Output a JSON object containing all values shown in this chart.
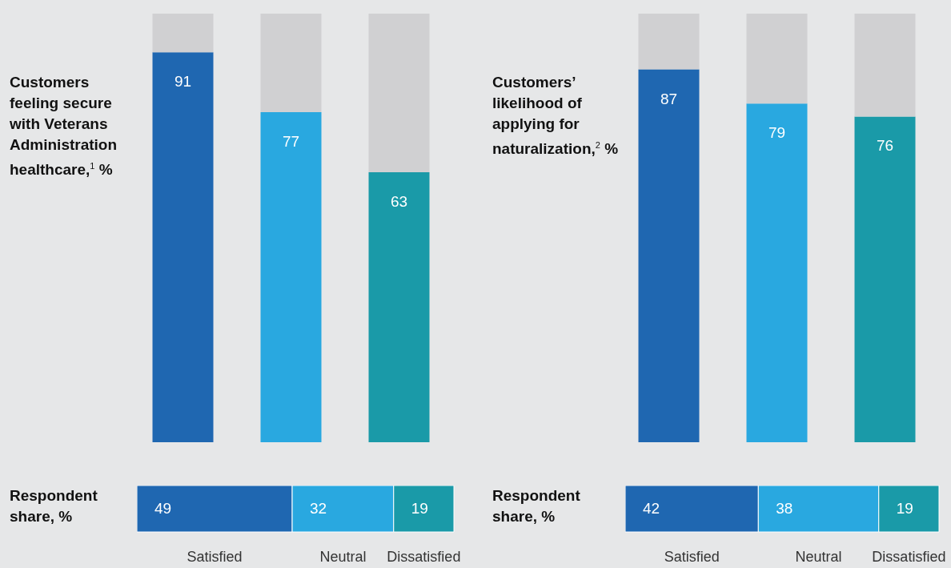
{
  "chart_data": [
    {
      "type": "bar",
      "stacked": true,
      "title": "Customers feeling secure with Veterans Administration healthcare,$^{1}$ %",
      "categories": [
        null,
        null,
        null
      ],
      "series": [
        {
          "values": [
            91,
            77,
            63
          ],
          "colors": [
            "#1f67b1",
            "#29a8e0",
            "#1a9aa8"
          ],
          "value_labels": [
            "91",
            "77",
            "63"
          ]
        },
        {
          "color": "#d0d0d2",
          "values": [
            9,
            23,
            37
          ]
        }
      ]
    },
    {
      "type": "bar",
      "stacked": true,
      "title": "Customers’ likelihood of applying for naturalization,$^{2}$ %",
      "categories": [
        null,
        null,
        null
      ],
      "series": [
        {
          "values": [
            87,
            79,
            76
          ],
          "colors": [
            "#1f67b1",
            "#29a8e0",
            "#1a9aa8"
          ],
          "value_labels": [
            "87",
            "79",
            "76"
          ]
        },
        {
          "color": "#d0d0d2",
          "values": [
            13,
            21,
            24
          ]
        }
      ]
    },
    {
      "type": "bar",
      "stacked": true,
      "orientation": "horizontal",
      "title": "Respondent share, %",
      "categories": [
        null
      ],
      "data_labels": true,
      "series": [
        {
          "name": "Satisfied",
          "color": "#1f67b1",
          "values": [
            49
          ]
        },
        {
          "name": "Neutral",
          "color": "#29a8e0",
          "values": [
            32
          ]
        },
        {
          "name": "Dissatisfied",
          "color": "#1a9aa8",
          "values": [
            19
          ]
        }
      ]
    },
    {
      "type": "bar",
      "stacked": true,
      "orientation": "horizontal",
      "title": "Respondent share, %",
      "categories": [
        null
      ],
      "data_labels": true,
      "series": [
        {
          "name": "Satisfied",
          "color": "#1f67b1",
          "values": [
            42
          ]
        },
        {
          "name": "Neutral",
          "color": "#29a8e0",
          "values": [
            38
          ]
        },
        {
          "name": "Dissatisfied",
          "color": "#1a9aa8",
          "values": [
            19
          ]
        }
      ]
    }
  ]
}
